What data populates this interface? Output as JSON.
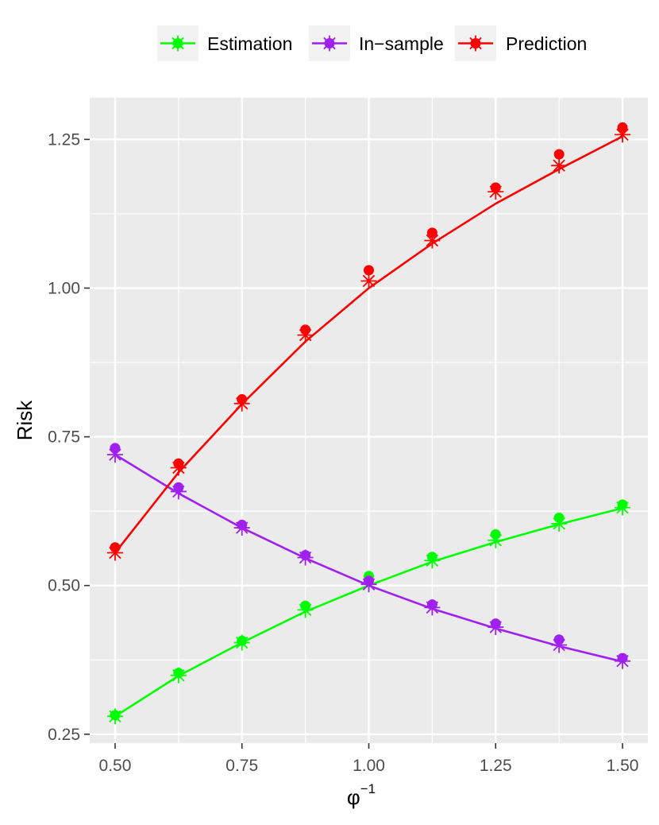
{
  "chart_data": {
    "type": "line",
    "xlabel_base": "φ",
    "xlabel_sup": "−1",
    "ylabel": "Risk",
    "xlim": [
      0.45,
      1.55
    ],
    "ylim": [
      0.235,
      1.32
    ],
    "x_ticks": [
      0.5,
      0.75,
      1.0,
      1.25,
      1.5
    ],
    "x_tick_labels": [
      "0.50",
      "0.75",
      "1.00",
      "1.25",
      "1.50"
    ],
    "y_ticks": [
      0.25,
      0.5,
      0.75,
      1.0,
      1.25
    ],
    "y_tick_labels": [
      "0.25",
      "0.50",
      "0.75",
      "1.00",
      "1.25"
    ],
    "grid": true,
    "legend_position": "top",
    "x": [
      0.5,
      0.625,
      0.75,
      0.875,
      1.0,
      1.125,
      1.25,
      1.375,
      1.5
    ],
    "series": [
      {
        "name": "Estimation",
        "color": "#00ff00",
        "theory": [
          0.28,
          0.348,
          0.404,
          0.456,
          0.5,
          0.54,
          0.573,
          0.603,
          0.63
        ],
        "points_circle": [
          0.282,
          0.353,
          0.407,
          0.466,
          0.516,
          0.548,
          0.586,
          0.614,
          0.636
        ],
        "points_star": [
          0.28,
          0.349,
          0.404,
          0.459,
          0.502,
          0.542,
          0.576,
          0.604,
          0.631
        ]
      },
      {
        "name": "In−sample",
        "color": "#a020f0",
        "theory": [
          0.72,
          0.655,
          0.597,
          0.546,
          0.5,
          0.461,
          0.428,
          0.398,
          0.372
        ],
        "points_circle": [
          0.731,
          0.665,
          0.602,
          0.551,
          0.508,
          0.468,
          0.436,
          0.409,
          0.378
        ],
        "points_star": [
          0.72,
          0.658,
          0.597,
          0.547,
          0.502,
          0.463,
          0.43,
          0.4,
          0.373
        ]
      },
      {
        "name": "Prediction",
        "color": "#ff0000",
        "theory": [
          0.555,
          0.69,
          0.805,
          0.91,
          1.0,
          1.075,
          1.142,
          1.2,
          1.255
        ],
        "points_circle": [
          0.564,
          0.705,
          0.813,
          0.93,
          1.03,
          1.093,
          1.169,
          1.225,
          1.27
        ],
        "points_star": [
          0.555,
          0.698,
          0.806,
          0.921,
          1.012,
          1.08,
          1.162,
          1.206,
          1.258
        ]
      }
    ]
  }
}
